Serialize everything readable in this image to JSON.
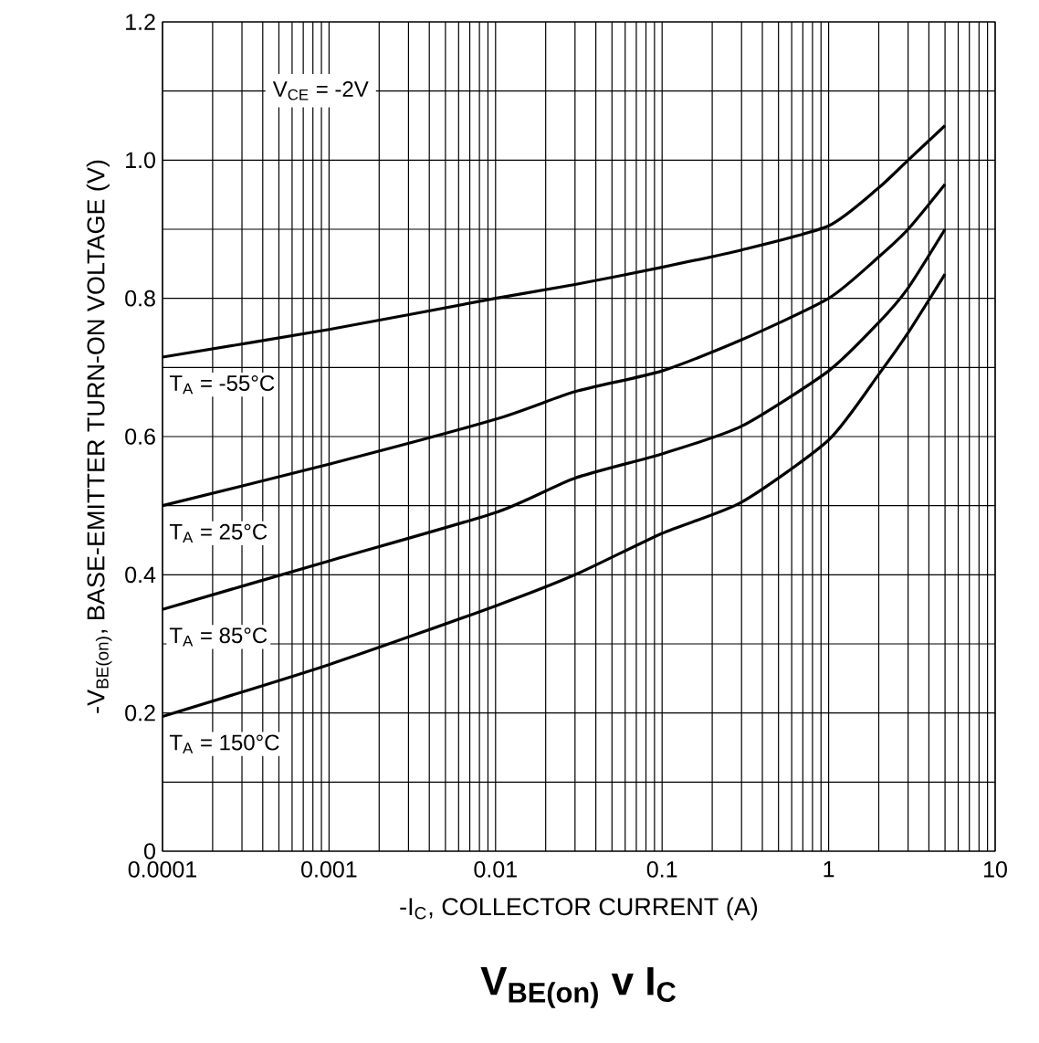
{
  "chart_data": {
    "type": "line",
    "title": "V$_{BE(on)}$ v I$_{C}$",
    "xlabel": "-I$_{C}$, COLLECTOR CURRENT (A)",
    "ylabel": "-V$_{BE(on)}$, BASE-EMITTER TURN-ON VOLTAGE (V)",
    "annotations": [
      "V$_{CE}$ = -2V"
    ],
    "log": "x",
    "grid": true,
    "marker": "none",
    "line_style": "solid",
    "legend": false,
    "xlim": [
      0.0001,
      10
    ],
    "xticks": [
      0.0001,
      0.001,
      0.01,
      0.1,
      1,
      10
    ],
    "ylim": [
      0,
      1.2
    ],
    "yticks": [
      0,
      {
        "value": 0.2,
        "label": "0.2"
      },
      {
        "value": 0.4,
        "label": "0.4"
      },
      {
        "value": 0.6,
        "label": "0.6"
      },
      {
        "value": 0.8,
        "label": "0.8"
      },
      {
        "value": 1.0,
        "label": "1.0"
      },
      {
        "value": 1.2,
        "label": "1.2"
      }
    ],
    "series": [
      {
        "name": "T$_{A}$ = -55°C",
        "color": "#000000",
        "x": [
          0.0001,
          0.001,
          0.01,
          0.03,
          0.1,
          0.3,
          1,
          2,
          3,
          5
        ],
        "values": [
          0.715,
          0.755,
          0.8,
          0.82,
          0.845,
          0.87,
          0.905,
          0.96,
          1.0,
          1.05
        ]
      },
      {
        "name": "T$_{A}$ = 25°C",
        "color": "#000000",
        "x": [
          0.0001,
          0.001,
          0.01,
          0.03,
          0.1,
          0.3,
          1,
          2,
          3,
          5
        ],
        "values": [
          0.5,
          0.56,
          0.625,
          0.665,
          0.695,
          0.74,
          0.8,
          0.86,
          0.9,
          0.965
        ]
      },
      {
        "name": "T$_{A}$ = 85°C",
        "color": "#000000",
        "x": [
          0.0001,
          0.001,
          0.01,
          0.03,
          0.1,
          0.3,
          1,
          2,
          3,
          5
        ],
        "values": [
          0.35,
          0.42,
          0.49,
          0.54,
          0.575,
          0.615,
          0.695,
          0.765,
          0.815,
          0.9
        ]
      },
      {
        "name": "T$_{A}$ = 150°C",
        "color": "#000000",
        "x": [
          0.0001,
          0.001,
          0.01,
          0.03,
          0.1,
          0.3,
          1,
          2,
          3,
          5
        ],
        "values": [
          0.195,
          0.27,
          0.355,
          0.4,
          0.46,
          0.505,
          0.595,
          0.69,
          0.75,
          0.835
        ]
      }
    ]
  }
}
